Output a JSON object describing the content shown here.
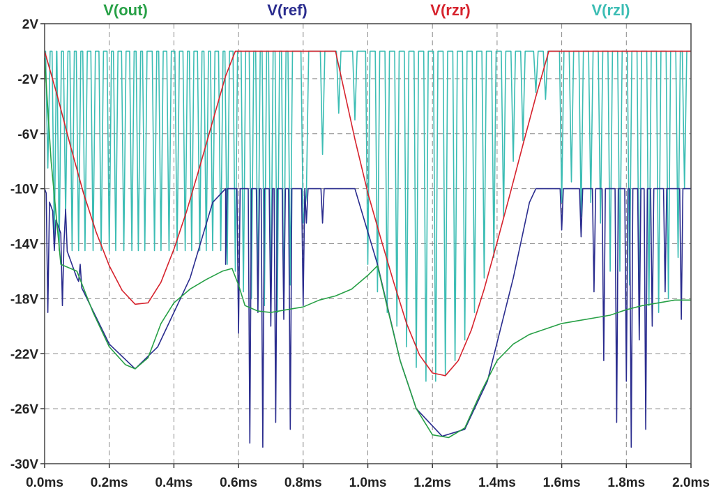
{
  "chart_data": {
    "type": "line",
    "title": "",
    "xlabel": "",
    "ylabel": "",
    "xlim": [
      0,
      2.0
    ],
    "ylim": [
      -30,
      2
    ],
    "x_unit": "ms",
    "y_unit": "V",
    "grid": true,
    "x_ticks": [
      "0.0ms",
      "0.2ms",
      "0.4ms",
      "0.6ms",
      "0.8ms",
      "1.0ms",
      "1.2ms",
      "1.4ms",
      "1.6ms",
      "1.8ms",
      "2.0ms"
    ],
    "y_ticks": [
      "2V",
      "-2V",
      "-6V",
      "-10V",
      "-14V",
      "-18V",
      "-22V",
      "-26V",
      "-30V"
    ],
    "legend_position": "top",
    "series": [
      {
        "name": "V(out)",
        "color": "#27a046",
        "points": [
          [
            0.0,
            -0.5
          ],
          [
            0.02,
            -8
          ],
          [
            0.05,
            -15.5
          ],
          [
            0.1,
            -16
          ],
          [
            0.15,
            -19
          ],
          [
            0.2,
            -21.5
          ],
          [
            0.25,
            -22.8
          ],
          [
            0.28,
            -23.1
          ],
          [
            0.32,
            -22.3
          ],
          [
            0.36,
            -19.8
          ],
          [
            0.4,
            -18.3
          ],
          [
            0.45,
            -17.3
          ],
          [
            0.5,
            -16.6
          ],
          [
            0.55,
            -16
          ],
          [
            0.58,
            -15.8
          ],
          [
            0.6,
            -17
          ],
          [
            0.62,
            -18.5
          ],
          [
            0.66,
            -18.9
          ],
          [
            0.7,
            -19
          ],
          [
            0.75,
            -18.8
          ],
          [
            0.8,
            -18.6
          ],
          [
            0.85,
            -18.1
          ],
          [
            0.9,
            -17.8
          ],
          [
            0.95,
            -17.3
          ],
          [
            1.0,
            -16.3
          ],
          [
            1.03,
            -15.6
          ],
          [
            1.06,
            -18.6
          ],
          [
            1.1,
            -22.5
          ],
          [
            1.15,
            -26
          ],
          [
            1.2,
            -27.9
          ],
          [
            1.25,
            -28.1
          ],
          [
            1.3,
            -27.4
          ],
          [
            1.35,
            -24.8
          ],
          [
            1.4,
            -22.5
          ],
          [
            1.45,
            -21.3
          ],
          [
            1.5,
            -20.6
          ],
          [
            1.55,
            -20.2
          ],
          [
            1.6,
            -19.8
          ],
          [
            1.65,
            -19.6
          ],
          [
            1.7,
            -19.4
          ],
          [
            1.75,
            -19.2
          ],
          [
            1.8,
            -18.8
          ],
          [
            1.85,
            -18.5
          ],
          [
            1.9,
            -18.3
          ],
          [
            1.95,
            -18.1
          ],
          [
            2.0,
            -18.1
          ]
        ]
      },
      {
        "name": "V(ref)",
        "color": "#2a2c8e",
        "baseline": [
          [
            0.0,
            -10
          ],
          [
            0.1,
            -16.5
          ],
          [
            0.2,
            -21.3
          ],
          [
            0.28,
            -23.1
          ],
          [
            0.35,
            -21.5
          ],
          [
            0.45,
            -16.5
          ],
          [
            0.52,
            -11
          ],
          [
            0.56,
            -10
          ],
          [
            0.96,
            -10
          ],
          [
            1.03,
            -15.5
          ],
          [
            1.1,
            -22.5
          ],
          [
            1.15,
            -26
          ],
          [
            1.23,
            -28
          ],
          [
            1.3,
            -27.5
          ],
          [
            1.37,
            -24
          ],
          [
            1.45,
            -16.5
          ],
          [
            1.5,
            -11
          ],
          [
            1.52,
            -10
          ],
          [
            2.0,
            -10
          ]
        ],
        "spikes": [
          [
            0.01,
            -19
          ],
          [
            0.03,
            -14.5
          ],
          [
            0.055,
            -18.5
          ],
          [
            0.065,
            -11.5
          ],
          [
            0.11,
            -15.5
          ],
          [
            0.56,
            -15.5
          ],
          [
            0.6,
            -20.5
          ],
          [
            0.635,
            -28.5
          ],
          [
            0.66,
            -19
          ],
          [
            0.675,
            -28.8
          ],
          [
            0.7,
            -20
          ],
          [
            0.715,
            -27
          ],
          [
            0.74,
            -19.5
          ],
          [
            0.76,
            -27.5
          ],
          [
            0.8,
            -18.5
          ],
          [
            0.81,
            -12.5
          ],
          [
            0.86,
            -12.5
          ],
          [
            1.6,
            -13
          ],
          [
            1.66,
            -13.5
          ],
          [
            1.7,
            -17.5
          ],
          [
            1.73,
            -22.5
          ],
          [
            1.77,
            -27
          ],
          [
            1.8,
            -24
          ],
          [
            1.815,
            -28.8
          ],
          [
            1.84,
            -21
          ],
          [
            1.86,
            -27.5
          ],
          [
            1.88,
            -20
          ],
          [
            1.92,
            -17.5
          ],
          [
            1.97,
            -19.5
          ]
        ],
        "spike_width_ms": 0.01
      },
      {
        "name": "V(rzr)",
        "color": "#d6232d",
        "points": [
          [
            0.0,
            0
          ],
          [
            0.04,
            -3.3
          ],
          [
            0.08,
            -6.9
          ],
          [
            0.12,
            -10.3
          ],
          [
            0.16,
            -13.2
          ],
          [
            0.2,
            -15.6
          ],
          [
            0.24,
            -17.4
          ],
          [
            0.28,
            -18.4
          ],
          [
            0.32,
            -18.3
          ],
          [
            0.36,
            -16.8
          ],
          [
            0.4,
            -14.4
          ],
          [
            0.44,
            -11.6
          ],
          [
            0.48,
            -8.4
          ],
          [
            0.52,
            -5.1
          ],
          [
            0.56,
            -1.8
          ],
          [
            0.59,
            0
          ],
          [
            0.9,
            0
          ],
          [
            0.93,
            -3.2
          ],
          [
            0.96,
            -6.4
          ],
          [
            1.0,
            -10.3
          ],
          [
            1.04,
            -13.6
          ],
          [
            1.08,
            -16.8
          ],
          [
            1.12,
            -19.8
          ],
          [
            1.16,
            -22.1
          ],
          [
            1.2,
            -23.4
          ],
          [
            1.24,
            -23.6
          ],
          [
            1.28,
            -22.5
          ],
          [
            1.32,
            -20.3
          ],
          [
            1.36,
            -17.3
          ],
          [
            1.4,
            -13.9
          ],
          [
            1.44,
            -10.4
          ],
          [
            1.48,
            -6.8
          ],
          [
            1.52,
            -3.3
          ],
          [
            1.56,
            0
          ],
          [
            2.0,
            0
          ]
        ]
      },
      {
        "name": "V(rzl)",
        "color": "#3cbdb4",
        "baseline": [
          [
            0.0,
            0
          ],
          [
            2.0,
            0
          ]
        ],
        "spikes": [
          [
            0.01,
            -8.5
          ],
          [
            0.03,
            -14
          ],
          [
            0.045,
            -14.5
          ],
          [
            0.065,
            -12
          ],
          [
            0.085,
            -14.5
          ],
          [
            0.105,
            -14.5
          ],
          [
            0.125,
            -14.5
          ],
          [
            0.15,
            -14.5
          ],
          [
            0.175,
            -14.5
          ],
          [
            0.2,
            -14.5
          ],
          [
            0.22,
            -14.5
          ],
          [
            0.245,
            -14.5
          ],
          [
            0.27,
            -14.5
          ],
          [
            0.29,
            -14.5
          ],
          [
            0.31,
            -14.5
          ],
          [
            0.34,
            -14.5
          ],
          [
            0.36,
            -14.5
          ],
          [
            0.385,
            -14.5
          ],
          [
            0.41,
            -14.5
          ],
          [
            0.435,
            -14.5
          ],
          [
            0.455,
            -14.5
          ],
          [
            0.48,
            -14.5
          ],
          [
            0.5,
            -14.5
          ],
          [
            0.52,
            -14.5
          ],
          [
            0.545,
            -14.5
          ],
          [
            0.565,
            -15.5
          ],
          [
            0.59,
            -16
          ],
          [
            0.615,
            -17.5
          ],
          [
            0.64,
            -18
          ],
          [
            0.66,
            -18
          ],
          [
            0.68,
            -18.5
          ],
          [
            0.7,
            -19
          ],
          [
            0.72,
            -19
          ],
          [
            0.74,
            -19
          ],
          [
            0.76,
            -17
          ],
          [
            0.8,
            -12.5
          ],
          [
            0.81,
            -10.5
          ],
          [
            0.86,
            -7.5
          ],
          [
            0.91,
            -4.5
          ],
          [
            0.96,
            -5
          ],
          [
            1.0,
            -15.5
          ],
          [
            1.03,
            -17.5
          ],
          [
            1.06,
            -19
          ],
          [
            1.09,
            -20
          ],
          [
            1.12,
            -21.5
          ],
          [
            1.15,
            -23
          ],
          [
            1.18,
            -24
          ],
          [
            1.21,
            -24
          ],
          [
            1.24,
            -23.5
          ],
          [
            1.27,
            -22.5
          ],
          [
            1.3,
            -21
          ],
          [
            1.33,
            -19
          ],
          [
            1.36,
            -16.5
          ],
          [
            1.39,
            -15
          ],
          [
            1.42,
            -12
          ],
          [
            1.45,
            -8
          ],
          [
            1.48,
            -6.5
          ],
          [
            1.52,
            -3
          ],
          [
            1.55,
            -3.5
          ],
          [
            1.6,
            -11
          ],
          [
            1.63,
            -9.5
          ],
          [
            1.66,
            -12
          ],
          [
            1.69,
            -11
          ],
          [
            1.72,
            -12.5
          ],
          [
            1.75,
            -16
          ],
          [
            1.78,
            -16
          ],
          [
            1.81,
            -17
          ],
          [
            1.84,
            -20
          ],
          [
            1.87,
            -18.5
          ],
          [
            1.9,
            -19
          ],
          [
            1.93,
            -18
          ],
          [
            1.96,
            -15
          ],
          [
            1.98,
            -10
          ]
        ],
        "spike_width_ms": 0.014
      }
    ]
  }
}
